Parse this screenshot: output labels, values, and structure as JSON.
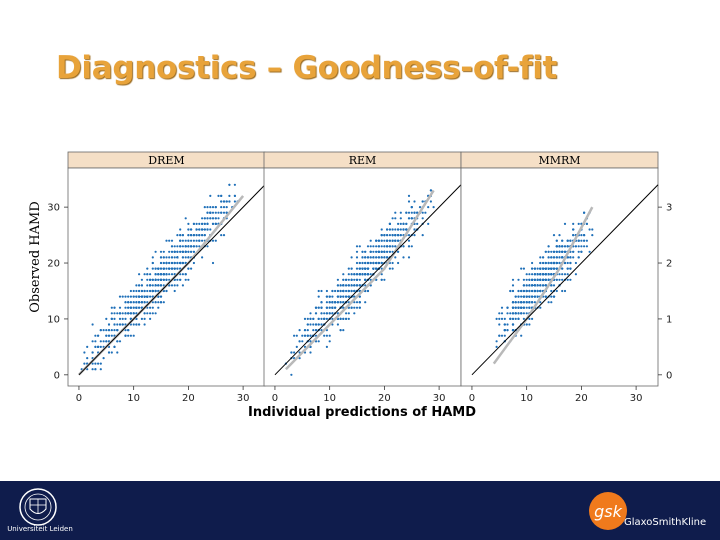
{
  "slide": {
    "title": "Diagnostics – Goodness-of-fit",
    "footer_left_text": "Universiteit Leiden",
    "footer_right_text": "GlaxoSmithKline",
    "footer_right_mark": "gsk",
    "colors": {
      "title": "#e8a33a",
      "footer_bg": "#0f1c4c",
      "points": "#1e6fb8",
      "strip": "#f5dfc6",
      "gsk": "#f07a1c"
    },
    "icons": {
      "left_logo": "university-seal-icon",
      "right_logo": "gsk-logo-icon"
    }
  },
  "chart_data": {
    "type": "scatter",
    "xlabel": "Individual predictions of HAMD",
    "ylabel": "Observed HAMD",
    "xlim": [
      -2,
      34
    ],
    "ylim": [
      -2,
      37
    ],
    "x_ticks": [
      0,
      10,
      20,
      30
    ],
    "y_ticks": [
      0,
      10,
      20,
      30
    ],
    "identity_line": true,
    "smooth_line": true,
    "panels": [
      {
        "name": "DREM",
        "x_range": [
          0,
          30
        ],
        "bias": 1.0,
        "smooth": [
          [
            0,
            0
          ],
          [
            10,
            10
          ],
          [
            20,
            20
          ],
          [
            30,
            32
          ]
        ]
      },
      {
        "name": "REM",
        "x_range": [
          2,
          30
        ],
        "bias": 0.5,
        "smooth": [
          [
            2,
            1
          ],
          [
            10,
            9
          ],
          [
            20,
            19
          ],
          [
            29,
            33
          ]
        ]
      },
      {
        "name": "MMRM",
        "x_range": [
          4,
          22
        ],
        "bias": 3.0,
        "smooth": [
          [
            4,
            2
          ],
          [
            10,
            10
          ],
          [
            16,
            19
          ],
          [
            22,
            30
          ]
        ]
      }
    ]
  }
}
